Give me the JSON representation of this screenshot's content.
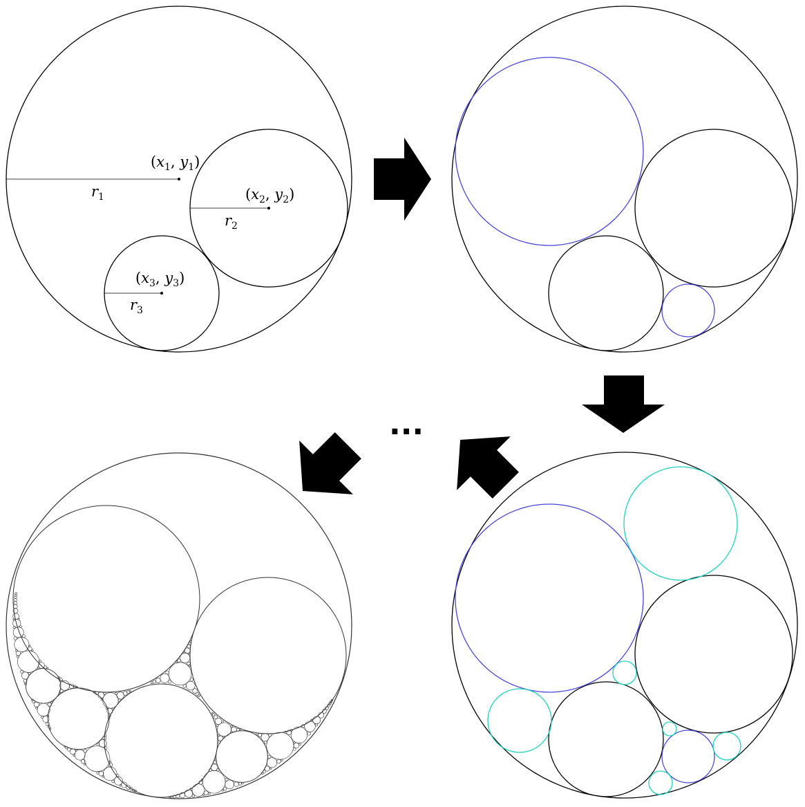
{
  "panel1": {
    "labels": [
      {
        "name": "label-center-1",
        "sym": "x",
        "sub": "1",
        "sym2": "y"
      },
      {
        "name": "label-center-2",
        "sym": "x",
        "sub": "2",
        "sym2": "y"
      },
      {
        "name": "label-center-3",
        "sym": "x",
        "sub": "3",
        "sym2": "y"
      }
    ],
    "radius_labels": [
      {
        "name": "label-radius-1",
        "sym": "r",
        "sub": "1"
      },
      {
        "name": "label-radius-2",
        "sym": "r",
        "sub": "2"
      },
      {
        "name": "label-radius-3",
        "sym": "r",
        "sub": "3"
      }
    ]
  },
  "ellipsis": "...",
  "colors": {
    "stroke": "#000000",
    "generation_1": "#4444dd",
    "generation_2": "#1fd2c0",
    "arrow": "#000000",
    "fractal_stroke": "#333333"
  },
  "steps": [
    {
      "name": "initial-configuration",
      "description_visible": false
    },
    {
      "name": "first-iteration"
    },
    {
      "name": "second-iteration"
    },
    {
      "name": "limit-gasket"
    }
  ]
}
